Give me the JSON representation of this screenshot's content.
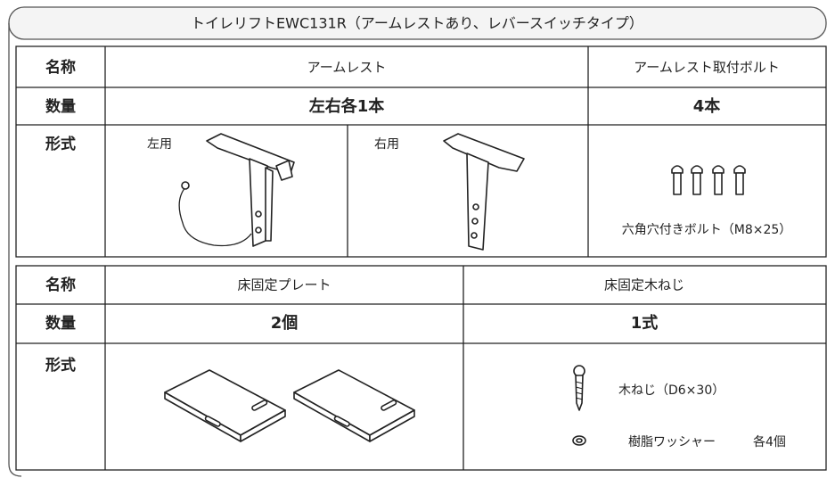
{
  "title": "トイレリフトEWC131R（アームレストあり、レバースイッチタイプ）",
  "table1": {
    "rows": [
      [
        "名称",
        "アームレスト",
        "アームレスト取付ボルト"
      ],
      [
        "数量",
        "左右各1本",
        "4本"
      ],
      [
        "形式",
        "左用",
        "右用",
        "六角穴付きボルト（M8×25）"
      ]
    ]
  },
  "table2": {
    "rows": [
      [
        "名称",
        "床固定プレート",
        "床固定木ねじ"
      ],
      [
        "数量",
        "2個",
        "1式"
      ],
      [
        "形式",
        "木ねじ（D6×30）",
        "樹脂ワッシャー",
        "各4個"
      ]
    ]
  }
}
